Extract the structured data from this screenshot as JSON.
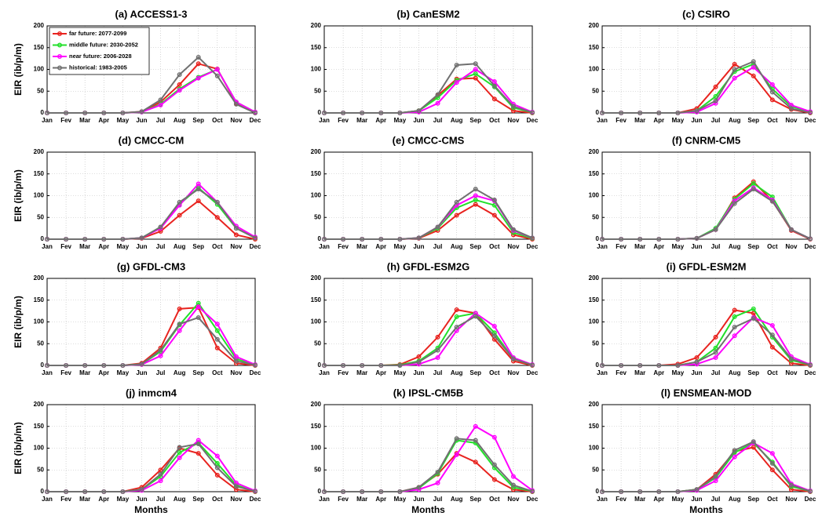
{
  "chart_data": [
    {
      "type": "line",
      "title": "(a) ACCESS1-3",
      "ylabel": "EIR (ib/p/m)",
      "legend": "upper left",
      "grid": true,
      "ylim": [
        0,
        200
      ],
      "yticks": [
        0,
        50,
        100,
        150,
        200
      ],
      "categories": [
        "Jan",
        "Fev",
        "Mar",
        "Apr",
        "May",
        "Jun",
        "Jul",
        "Aug",
        "Sep",
        "Oct",
        "Nov",
        "Dec"
      ],
      "series": [
        {
          "name": "far future: 2077-2099",
          "color": "#e8231f",
          "values": [
            0,
            0,
            0,
            0,
            0,
            3,
            25,
            65,
            113,
            101,
            22,
            0
          ]
        },
        {
          "name": "middle future: 2030-2052",
          "color": "#22e02a",
          "values": [
            0,
            0,
            0,
            0,
            0,
            2,
            20,
            55,
            82,
            100,
            25,
            2
          ]
        },
        {
          "name": "near future: 2006-2028",
          "color": "#ff00ff",
          "values": [
            0,
            0,
            0,
            0,
            0,
            2,
            18,
            52,
            80,
            100,
            25,
            2
          ]
        },
        {
          "name": "historical: 1983-2005",
          "color": "#707070",
          "values": [
            0,
            0,
            0,
            0,
            0,
            3,
            30,
            88,
            128,
            85,
            20,
            0
          ]
        }
      ]
    },
    {
      "type": "line",
      "title": "(b) CanESM2",
      "grid": true,
      "ylim": [
        0,
        200
      ],
      "yticks": [
        0,
        50,
        100,
        150,
        200
      ],
      "categories": [
        "Jan",
        "Fev",
        "Mar",
        "Apr",
        "May",
        "Jun",
        "Jul",
        "Aug",
        "Sep",
        "Oct",
        "Nov",
        "Dec"
      ],
      "series": [
        {
          "color": "#e8231f",
          "values": [
            0,
            0,
            0,
            0,
            0,
            5,
            40,
            78,
            80,
            32,
            5,
            0
          ]
        },
        {
          "color": "#22e02a",
          "values": [
            0,
            0,
            0,
            0,
            0,
            5,
            35,
            75,
            90,
            60,
            12,
            1
          ]
        },
        {
          "color": "#ff00ff",
          "values": [
            0,
            0,
            0,
            0,
            0,
            2,
            22,
            70,
            100,
            72,
            20,
            2
          ]
        },
        {
          "color": "#707070",
          "values": [
            0,
            0,
            0,
            0,
            0,
            5,
            42,
            110,
            113,
            62,
            15,
            1
          ]
        }
      ]
    },
    {
      "type": "line",
      "title": "(c) CSIRO",
      "grid": true,
      "ylim": [
        0,
        200
      ],
      "yticks": [
        0,
        50,
        100,
        150,
        200
      ],
      "categories": [
        "Jan",
        "Fev",
        "Mar",
        "Apr",
        "May",
        "Jun",
        "Jul",
        "Aug",
        "Sep",
        "Oct",
        "Nov",
        "Dec"
      ],
      "series": [
        {
          "color": "#e8231f",
          "values": [
            0,
            0,
            0,
            0,
            0,
            10,
            60,
            112,
            85,
            30,
            8,
            0
          ]
        },
        {
          "color": "#22e02a",
          "values": [
            0,
            0,
            0,
            0,
            0,
            5,
            38,
            95,
            112,
            55,
            15,
            2
          ]
        },
        {
          "color": "#ff00ff",
          "values": [
            0,
            0,
            0,
            0,
            0,
            2,
            22,
            80,
            105,
            65,
            18,
            3
          ]
        },
        {
          "color": "#707070",
          "values": [
            0,
            0,
            0,
            0,
            0,
            5,
            28,
            100,
            118,
            48,
            10,
            1
          ]
        }
      ]
    },
    {
      "type": "line",
      "title": "(d) CMCC-CM",
      "ylabel": "EIR (ib/p/m)",
      "grid": true,
      "ylim": [
        0,
        200
      ],
      "yticks": [
        0,
        50,
        100,
        150,
        200
      ],
      "categories": [
        "Jan",
        "Fev",
        "Mar",
        "Apr",
        "May",
        "Jun",
        "Jul",
        "Aug",
        "Sep",
        "Oct",
        "Nov",
        "Dec"
      ],
      "series": [
        {
          "color": "#e8231f",
          "values": [
            0,
            0,
            0,
            0,
            0,
            2,
            18,
            55,
            88,
            50,
            10,
            0
          ]
        },
        {
          "color": "#22e02a",
          "values": [
            0,
            0,
            0,
            0,
            0,
            3,
            28,
            80,
            118,
            80,
            25,
            3
          ]
        },
        {
          "color": "#ff00ff",
          "values": [
            0,
            0,
            0,
            0,
            0,
            3,
            25,
            78,
            127,
            85,
            30,
            5
          ]
        },
        {
          "color": "#707070",
          "values": [
            0,
            0,
            0,
            0,
            0,
            3,
            28,
            85,
            115,
            85,
            25,
            3
          ]
        }
      ]
    },
    {
      "type": "line",
      "title": "(e) CMCC-CMS",
      "grid": true,
      "ylim": [
        0,
        200
      ],
      "yticks": [
        0,
        50,
        100,
        150,
        200
      ],
      "categories": [
        "Jan",
        "Fev",
        "Mar",
        "Apr",
        "May",
        "Jun",
        "Jul",
        "Aug",
        "Sep",
        "Oct",
        "Nov",
        "Dec"
      ],
      "series": [
        {
          "color": "#e8231f",
          "values": [
            0,
            0,
            0,
            0,
            0,
            2,
            20,
            55,
            80,
            55,
            10,
            0
          ]
        },
        {
          "color": "#22e02a",
          "values": [
            0,
            0,
            0,
            0,
            0,
            3,
            25,
            72,
            90,
            78,
            15,
            2
          ]
        },
        {
          "color": "#ff00ff",
          "values": [
            0,
            0,
            0,
            0,
            0,
            3,
            28,
            78,
            100,
            88,
            20,
            3
          ]
        },
        {
          "color": "#707070",
          "values": [
            0,
            0,
            0,
            0,
            0,
            3,
            28,
            85,
            115,
            90,
            22,
            3
          ]
        }
      ]
    },
    {
      "type": "line",
      "title": "(f) CNRM-CM5",
      "grid": true,
      "ylim": [
        0,
        200
      ],
      "yticks": [
        0,
        50,
        100,
        150,
        200
      ],
      "categories": [
        "Jan",
        "Fev",
        "Mar",
        "Apr",
        "May",
        "Jun",
        "Jul",
        "Aug",
        "Sep",
        "Oct",
        "Nov",
        "Dec"
      ],
      "series": [
        {
          "color": "#e8231f",
          "values": [
            0,
            0,
            0,
            0,
            0,
            2,
            22,
            95,
            132,
            88,
            20,
            0
          ]
        },
        {
          "color": "#22e02a",
          "values": [
            0,
            0,
            0,
            0,
            0,
            2,
            25,
            92,
            128,
            97,
            22,
            1
          ]
        },
        {
          "color": "#ff00ff",
          "values": [
            0,
            0,
            0,
            0,
            0,
            2,
            22,
            88,
            118,
            90,
            22,
            1
          ]
        },
        {
          "color": "#707070",
          "values": [
            0,
            0,
            0,
            0,
            0,
            2,
            22,
            82,
            115,
            87,
            22,
            1
          ]
        }
      ]
    },
    {
      "type": "line",
      "title": "(g) GFDL-CM3",
      "ylabel": "EIR (ib/p/m)",
      "grid": true,
      "ylim": [
        0,
        200
      ],
      "yticks": [
        0,
        50,
        100,
        150,
        200
      ],
      "categories": [
        "Jan",
        "Fev",
        "Mar",
        "Apr",
        "May",
        "Jun",
        "Jul",
        "Aug",
        "Sep",
        "Oct",
        "Nov",
        "Dec"
      ],
      "series": [
        {
          "color": "#e8231f",
          "values": [
            0,
            0,
            0,
            0,
            0,
            5,
            40,
            130,
            133,
            40,
            5,
            0
          ]
        },
        {
          "color": "#22e02a",
          "values": [
            0,
            0,
            0,
            0,
            0,
            3,
            32,
            93,
            143,
            80,
            15,
            1
          ]
        },
        {
          "color": "#ff00ff",
          "values": [
            0,
            0,
            0,
            0,
            0,
            2,
            22,
            80,
            135,
            95,
            20,
            2
          ]
        },
        {
          "color": "#707070",
          "values": [
            0,
            0,
            0,
            0,
            0,
            3,
            35,
            95,
            110,
            60,
            10,
            1
          ]
        }
      ]
    },
    {
      "type": "line",
      "title": "(h) GFDL-ESM2G",
      "grid": true,
      "ylim": [
        0,
        200
      ],
      "yticks": [
        0,
        50,
        100,
        150,
        200
      ],
      "categories": [
        "Jan",
        "Fev",
        "Mar",
        "Apr",
        "May",
        "Jun",
        "Jul",
        "Aug",
        "Sep",
        "Oct",
        "Nov",
        "Dec"
      ],
      "series": [
        {
          "color": "#e8231f",
          "values": [
            0,
            0,
            0,
            0,
            2,
            20,
            65,
            128,
            120,
            60,
            10,
            0
          ]
        },
        {
          "color": "#22e02a",
          "values": [
            0,
            0,
            0,
            0,
            1,
            10,
            40,
            112,
            120,
            75,
            15,
            1
          ]
        },
        {
          "color": "#ff00ff",
          "values": [
            0,
            0,
            0,
            0,
            0,
            3,
            18,
            80,
            120,
            90,
            18,
            2
          ]
        },
        {
          "color": "#707070",
          "values": [
            0,
            0,
            0,
            0,
            0,
            8,
            35,
            88,
            113,
            68,
            15,
            1
          ]
        }
      ]
    },
    {
      "type": "line",
      "title": "(i) GFDL-ESM2M",
      "grid": true,
      "ylim": [
        0,
        200
      ],
      "yticks": [
        0,
        50,
        100,
        150,
        200
      ],
      "categories": [
        "Jan",
        "Fev",
        "Mar",
        "Apr",
        "May",
        "Jun",
        "Jul",
        "Aug",
        "Sep",
        "Oct",
        "Nov",
        "Dec"
      ],
      "series": [
        {
          "color": "#e8231f",
          "values": [
            0,
            0,
            0,
            0,
            3,
            18,
            65,
            127,
            120,
            42,
            5,
            0
          ]
        },
        {
          "color": "#22e02a",
          "values": [
            0,
            0,
            0,
            0,
            0,
            8,
            40,
            112,
            130,
            65,
            12,
            1
          ]
        },
        {
          "color": "#ff00ff",
          "values": [
            0,
            0,
            0,
            0,
            0,
            3,
            18,
            68,
            110,
            92,
            20,
            2
          ]
        },
        {
          "color": "#707070",
          "values": [
            0,
            0,
            0,
            0,
            0,
            8,
            30,
            88,
            108,
            70,
            15,
            1
          ]
        }
      ]
    },
    {
      "type": "line",
      "title": "(j) inmcm4",
      "ylabel": "EIR (ib/p/m)",
      "xlabel": "Months",
      "grid": true,
      "ylim": [
        0,
        200
      ],
      "yticks": [
        0,
        50,
        100,
        150,
        200
      ],
      "categories": [
        "Jan",
        "Fev",
        "Mar",
        "Apr",
        "May",
        "Jun",
        "Jul",
        "Aug",
        "Sep",
        "Oct",
        "Nov",
        "Dec"
      ],
      "series": [
        {
          "color": "#e8231f",
          "values": [
            0,
            0,
            0,
            0,
            0,
            10,
            50,
            100,
            88,
            38,
            5,
            0
          ]
        },
        {
          "color": "#22e02a",
          "values": [
            0,
            0,
            0,
            0,
            0,
            5,
            35,
            90,
            112,
            65,
            15,
            1
          ]
        },
        {
          "color": "#ff00ff",
          "values": [
            0,
            0,
            0,
            0,
            0,
            3,
            25,
            78,
            118,
            82,
            20,
            2
          ]
        },
        {
          "color": "#707070",
          "values": [
            0,
            0,
            0,
            0,
            0,
            5,
            40,
            102,
            110,
            55,
            12,
            1
          ]
        }
      ]
    },
    {
      "type": "line",
      "title": "(k) IPSL-CM5B",
      "xlabel": "Months",
      "grid": true,
      "ylim": [
        0,
        200
      ],
      "yticks": [
        0,
        50,
        100,
        150,
        200
      ],
      "categories": [
        "Jan",
        "Fev",
        "Mar",
        "Apr",
        "May",
        "Jun",
        "Jul",
        "Aug",
        "Sep",
        "Oct",
        "Nov",
        "Dec"
      ],
      "series": [
        {
          "color": "#e8231f",
          "values": [
            0,
            0,
            0,
            0,
            0,
            10,
            40,
            88,
            68,
            28,
            5,
            0
          ]
        },
        {
          "color": "#22e02a",
          "values": [
            0,
            0,
            0,
            0,
            0,
            8,
            42,
            118,
            112,
            55,
            10,
            1
          ]
        },
        {
          "color": "#ff00ff",
          "values": [
            0,
            0,
            0,
            0,
            0,
            5,
            20,
            85,
            150,
            125,
            35,
            3
          ]
        },
        {
          "color": "#707070",
          "values": [
            0,
            0,
            0,
            0,
            0,
            10,
            45,
            122,
            118,
            62,
            15,
            1
          ]
        }
      ]
    },
    {
      "type": "line",
      "title": "(l) ENSMEAN-MOD",
      "xlabel": "Months",
      "grid": true,
      "ylim": [
        0,
        200
      ],
      "yticks": [
        0,
        50,
        100,
        150,
        200
      ],
      "categories": [
        "Jan",
        "Fev",
        "Mar",
        "Apr",
        "May",
        "Jun",
        "Jul",
        "Aug",
        "Sep",
        "Oct",
        "Nov",
        "Dec"
      ],
      "series": [
        {
          "color": "#e8231f",
          "values": [
            0,
            0,
            0,
            0,
            0,
            5,
            40,
            92,
            102,
            50,
            5,
            0
          ]
        },
        {
          "color": "#22e02a",
          "values": [
            0,
            0,
            0,
            0,
            0,
            5,
            32,
            90,
            112,
            68,
            12,
            1
          ]
        },
        {
          "color": "#ff00ff",
          "values": [
            0,
            0,
            0,
            0,
            0,
            3,
            25,
            80,
            112,
            88,
            18,
            2
          ]
        },
        {
          "color": "#707070",
          "values": [
            0,
            0,
            0,
            0,
            0,
            5,
            35,
            95,
            115,
            65,
            15,
            1
          ]
        }
      ]
    }
  ]
}
